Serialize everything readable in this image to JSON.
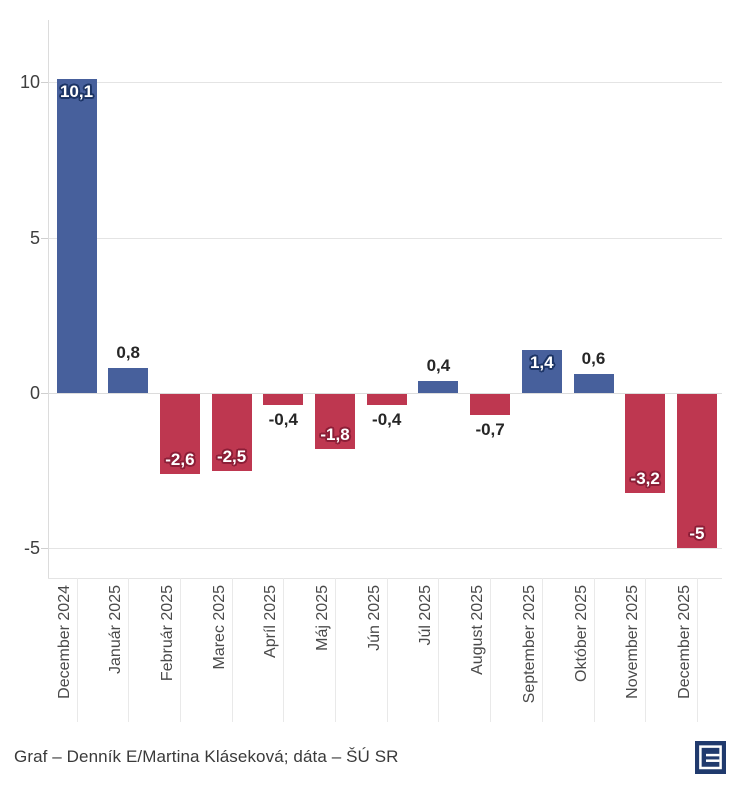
{
  "chart_data": {
    "type": "bar",
    "title": "",
    "categories": [
      "December 2024",
      "Január 2025",
      "Február 2025",
      "Marec 2025",
      "Apríl 2025",
      "Máj 2025",
      "Jún 2025",
      "Júl 2025",
      "August 2025",
      "September 2025",
      "Október 2025",
      "November 2025",
      "December 2025"
    ],
    "values": [
      10.1,
      0.8,
      -2.6,
      -2.5,
      -0.4,
      -1.8,
      -0.4,
      0.4,
      -0.7,
      1.4,
      0.6,
      -3.2,
      -5
    ],
    "value_labels": [
      "10,1",
      "0,8",
      "-2,6",
      "-2,5",
      "-0,4",
      "-1,8",
      "-0,4",
      "0,4",
      "-0,7",
      "1,4",
      "0,6",
      "-3,2",
      "-5"
    ],
    "y_ticks": [
      10,
      5,
      0,
      -5
    ],
    "y_tick_labels": [
      "10",
      "5",
      "0",
      "-5"
    ],
    "ylim": [
      -5.95,
      12.0
    ],
    "grid": true,
    "legend": null,
    "inside_label_threshold": 1.4,
    "colors": {
      "positive": "#47609c",
      "negative": "#be3750",
      "positive_outline": "#1c3465",
      "negative_outline": "#8c1e37",
      "label_outside": "#262626",
      "axis_text": "#3f3f3f",
      "x_label_text": "#4a4a4a",
      "gridline": "#e4e4e4",
      "zero_line": "#dcdcdc",
      "axis_line": "#dcdcdc",
      "separator": "#e9e9e9",
      "tick": "#cfcfcf"
    }
  },
  "footer": {
    "credit": "Graf – Denník E/Martina Kláseková; dáta – ŠÚ SR",
    "logo": "dennik-e-logo",
    "logo_color": "#203a6d",
    "logo_glyph_color": "#ffffff"
  }
}
